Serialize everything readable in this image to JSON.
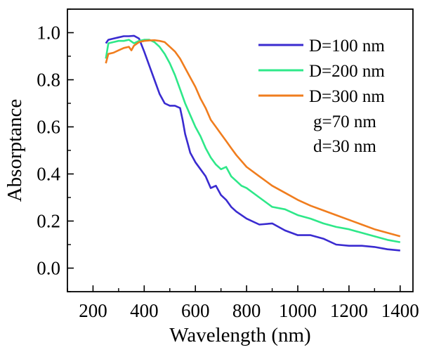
{
  "chart_data": {
    "type": "line",
    "xlabel": "Wavelength (nm)",
    "ylabel": "Absorptance",
    "xlim": [
      100,
      1450
    ],
    "ylim": [
      -0.1,
      1.1
    ],
    "x_ticks": [
      200,
      400,
      600,
      800,
      1000,
      1200,
      1400
    ],
    "y_ticks": [
      0.0,
      0.2,
      0.4,
      0.6,
      0.8,
      1.0
    ],
    "x_tick_labels": [
      "200",
      "400",
      "600",
      "800",
      "1000",
      "1200",
      "1400"
    ],
    "y_tick_labels": [
      "0.0",
      "0.2",
      "0.4",
      "0.6",
      "0.8",
      "1.0"
    ],
    "legend_position": "top-right",
    "annotations": [
      "g=70 nm",
      "d=30 nm"
    ],
    "series": [
      {
        "name": "D=100 nm",
        "color": "#3a2bd0",
        "x": [
          250,
          260,
          280,
          300,
          320,
          340,
          360,
          380,
          400,
          420,
          440,
          460,
          480,
          500,
          520,
          540,
          550,
          560,
          570,
          580,
          600,
          620,
          640,
          660,
          680,
          700,
          720,
          740,
          760,
          800,
          850,
          900,
          950,
          1000,
          1050,
          1100,
          1150,
          1200,
          1250,
          1300,
          1350,
          1400
        ],
        "y": [
          0.955,
          0.97,
          0.975,
          0.98,
          0.985,
          0.985,
          0.987,
          0.975,
          0.92,
          0.86,
          0.8,
          0.74,
          0.7,
          0.69,
          0.69,
          0.68,
          0.63,
          0.57,
          0.53,
          0.49,
          0.45,
          0.42,
          0.39,
          0.34,
          0.35,
          0.31,
          0.29,
          0.26,
          0.24,
          0.21,
          0.185,
          0.19,
          0.16,
          0.14,
          0.14,
          0.125,
          0.1,
          0.095,
          0.095,
          0.09,
          0.08,
          0.075
        ]
      },
      {
        "name": "D=200 nm",
        "color": "#2ee889",
        "x": [
          250,
          260,
          280,
          300,
          320,
          340,
          360,
          380,
          400,
          420,
          440,
          460,
          480,
          500,
          520,
          540,
          560,
          580,
          600,
          620,
          640,
          660,
          680,
          700,
          720,
          740,
          760,
          780,
          800,
          850,
          900,
          950,
          1000,
          1050,
          1100,
          1150,
          1200,
          1250,
          1300,
          1350,
          1400
        ],
        "y": [
          0.89,
          0.955,
          0.96,
          0.965,
          0.965,
          0.97,
          0.955,
          0.965,
          0.97,
          0.97,
          0.96,
          0.94,
          0.91,
          0.87,
          0.82,
          0.76,
          0.7,
          0.65,
          0.6,
          0.56,
          0.51,
          0.47,
          0.44,
          0.42,
          0.43,
          0.39,
          0.37,
          0.35,
          0.34,
          0.3,
          0.26,
          0.25,
          0.225,
          0.21,
          0.19,
          0.175,
          0.165,
          0.15,
          0.135,
          0.12,
          0.11
        ]
      },
      {
        "name": "D=300 nm",
        "color": "#f07d1e",
        "x": [
          250,
          260,
          280,
          300,
          320,
          340,
          350,
          360,
          380,
          400,
          420,
          440,
          460,
          480,
          500,
          520,
          540,
          560,
          580,
          600,
          620,
          640,
          660,
          680,
          700,
          720,
          740,
          760,
          800,
          850,
          900,
          950,
          1000,
          1050,
          1100,
          1150,
          1200,
          1250,
          1300,
          1350,
          1400
        ],
        "y": [
          0.87,
          0.91,
          0.915,
          0.925,
          0.935,
          0.94,
          0.925,
          0.945,
          0.96,
          0.965,
          0.967,
          0.968,
          0.965,
          0.96,
          0.94,
          0.92,
          0.89,
          0.85,
          0.81,
          0.77,
          0.72,
          0.68,
          0.63,
          0.6,
          0.57,
          0.54,
          0.51,
          0.48,
          0.43,
          0.39,
          0.35,
          0.32,
          0.29,
          0.265,
          0.245,
          0.225,
          0.205,
          0.185,
          0.165,
          0.15,
          0.135
        ]
      }
    ]
  }
}
